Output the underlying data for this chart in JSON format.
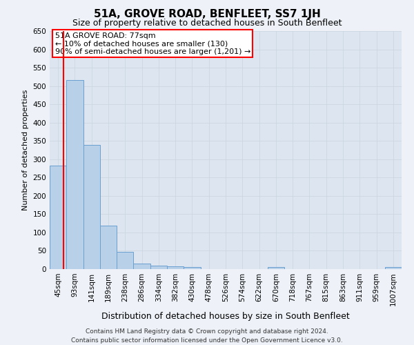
{
  "title": "51A, GROVE ROAD, BENFLEET, SS7 1JH",
  "subtitle": "Size of property relative to detached houses in South Benfleet",
  "xlabel": "Distribution of detached houses by size in South Benfleet",
  "ylabel": "Number of detached properties",
  "categories": [
    "45sqm",
    "93sqm",
    "141sqm",
    "189sqm",
    "238sqm",
    "286sqm",
    "334sqm",
    "382sqm",
    "430sqm",
    "478sqm",
    "526sqm",
    "574sqm",
    "622sqm",
    "670sqm",
    "718sqm",
    "767sqm",
    "815sqm",
    "863sqm",
    "911sqm",
    "959sqm",
    "1007sqm"
  ],
  "values": [
    283,
    516,
    340,
    118,
    47,
    16,
    10,
    8,
    5,
    0,
    0,
    0,
    0,
    5,
    0,
    0,
    0,
    0,
    0,
    0,
    5
  ],
  "bar_color": "#b8d0e8",
  "bar_edge_color": "#6a9fd0",
  "grid_color": "#c8d4e0",
  "annotation_box_text_line1": "51A GROVE ROAD: 77sqm",
  "annotation_box_text_line2": "← 10% of detached houses are smaller (130)",
  "annotation_box_text_line3": "90% of semi-detached houses are larger (1,201) →",
  "annotation_box_color": "white",
  "annotation_box_edge_color": "red",
  "red_line_x": 0.33,
  "footer1": "Contains HM Land Registry data © Crown copyright and database right 2024.",
  "footer2": "Contains public sector information licensed under the Open Government Licence v3.0.",
  "ylim": [
    0,
    650
  ],
  "yticks": [
    0,
    50,
    100,
    150,
    200,
    250,
    300,
    350,
    400,
    450,
    500,
    550,
    600,
    650
  ],
  "background_color": "#eef2f8",
  "plot_bg_color": "#dde6f0",
  "title_fontsize": 11,
  "subtitle_fontsize": 9,
  "ylabel_fontsize": 8,
  "xlabel_fontsize": 9,
  "tick_fontsize": 7.5,
  "footer_fontsize": 6.5
}
